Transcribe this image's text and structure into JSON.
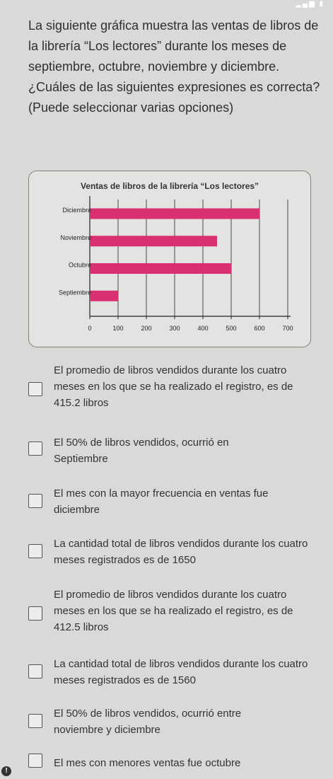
{
  "question": {
    "text": "La siguiente gráfica muestra las ventas de libros de la librería “Los lectores” durante los meses de septiembre, octubre, noviembre y diciembre. ¿Cuáles de las siguientes expresiones es correcta? (Puede seleccionar varias opciones)"
  },
  "chart_data": {
    "type": "bar",
    "orientation": "horizontal",
    "title": "Ventas de libros de la librería “Los lectores”",
    "categories": [
      "Diciembre",
      "Noviembre",
      "Octubre",
      "Septiembre"
    ],
    "values": [
      600,
      450,
      500,
      100
    ],
    "x_ticks": [
      "0",
      "100",
      "200",
      "300",
      "400",
      "500",
      "600",
      "700"
    ],
    "xlim": [
      0,
      700
    ],
    "grid": true,
    "bar_color": "#d92f73"
  },
  "options": [
    {
      "text": "El promedio de libros vendidos durante los cuatro meses en los que se ha realizado el registro, es de 415.2 libros"
    },
    {
      "text": "El 50% de libros vendidos, ocurrió en Septiembre"
    },
    {
      "text": "El mes con la mayor frecuencia en ventas fue diciembre"
    },
    {
      "text": "La cantidad total de libros vendidos durante los cuatro meses registrados es de 1650"
    },
    {
      "text": "El promedio de libros vendidos durante los cuatro meses en los que se ha realizado el registro, es de 412.5 libros"
    },
    {
      "text": "La cantidad total de libros vendidos durante los cuatro meses registrados es de 1560"
    },
    {
      "text": "El 50% de libros vendidos, ocurrió entre noviembre y diciembre"
    },
    {
      "text": "El mes con menores ventas fue octubre"
    }
  ]
}
